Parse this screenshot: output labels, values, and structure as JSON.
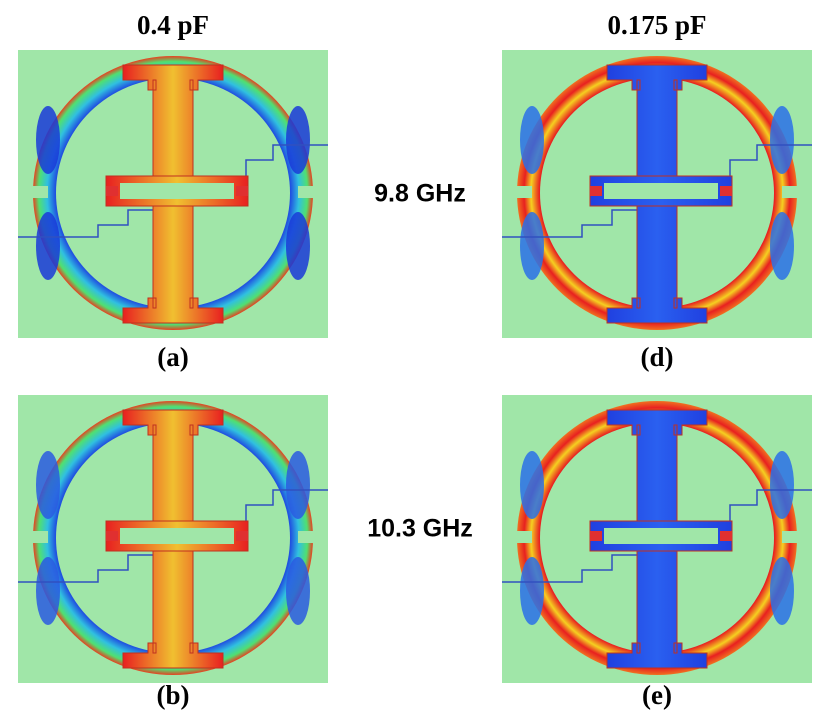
{
  "columns": [
    {
      "title": "0.4 pF"
    },
    {
      "title": "0.175 pF"
    }
  ],
  "rows": [
    {
      "label": "9.8 GHz"
    },
    {
      "label": "10.3 GHz"
    }
  ],
  "panels": [
    {
      "caption": "(a)"
    },
    {
      "caption": "(d)"
    },
    {
      "caption": "(b)"
    },
    {
      "caption": "(e)"
    }
  ]
}
